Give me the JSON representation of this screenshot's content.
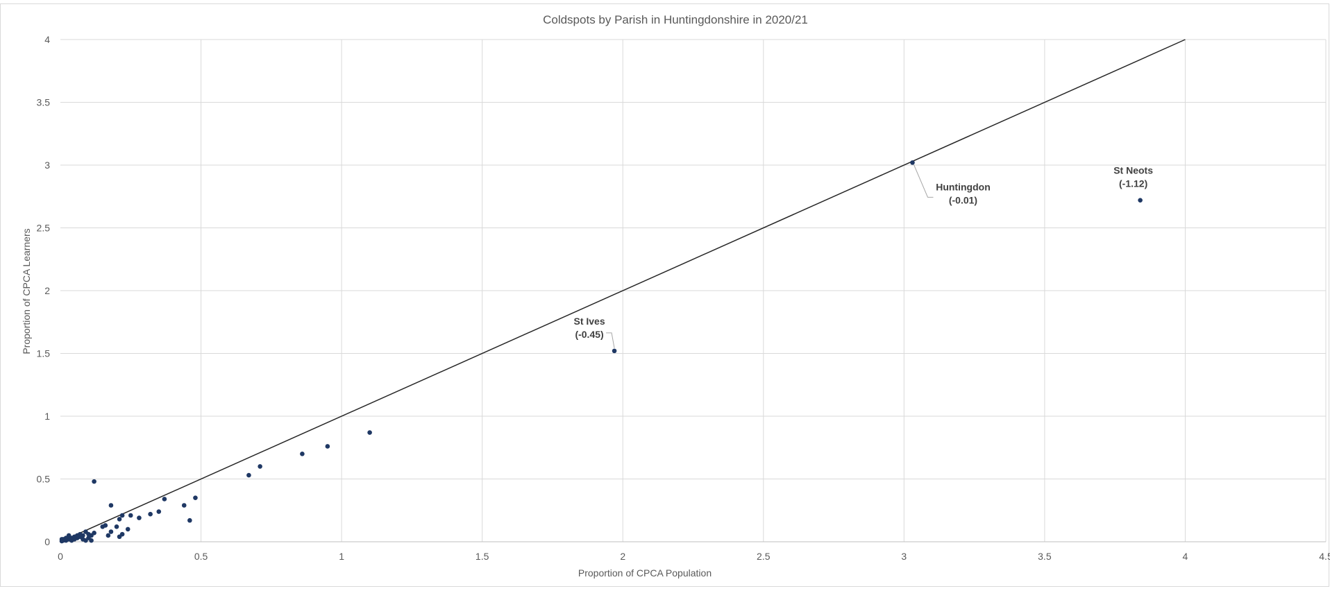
{
  "chart_data": {
    "type": "scatter",
    "title": "Coldspots by Parish in Huntingdonshire in 2020/21",
    "xlabel": "Proportion of CPCA Population",
    "ylabel": "Proportion of CPCA Learners",
    "xlim": [
      0,
      4.5
    ],
    "ylim": [
      0,
      4
    ],
    "x_ticks": [
      "0",
      "0.5",
      "1",
      "1.5",
      "2",
      "2.5",
      "3",
      "3.5",
      "4",
      "4.5"
    ],
    "y_ticks": [
      "0",
      "0.5",
      "1",
      "1.5",
      "2",
      "2.5",
      "3",
      "3.5",
      "4"
    ],
    "grid": true,
    "marker_color": "#1F3864",
    "reference_line": {
      "from": [
        0,
        0
      ],
      "to": [
        4,
        4
      ],
      "color": "#262626"
    },
    "points": [
      [
        1.1,
        0.87
      ],
      [
        0.95,
        0.76
      ],
      [
        0.86,
        0.7
      ],
      [
        0.71,
        0.6
      ],
      [
        0.67,
        0.53
      ],
      [
        0.48,
        0.35
      ],
      [
        0.46,
        0.17
      ],
      [
        0.44,
        0.29
      ],
      [
        0.37,
        0.34
      ],
      [
        0.35,
        0.24
      ],
      [
        0.32,
        0.22
      ],
      [
        0.28,
        0.19
      ],
      [
        0.25,
        0.21
      ],
      [
        0.24,
        0.1
      ],
      [
        0.22,
        0.21
      ],
      [
        0.22,
        0.06
      ],
      [
        0.21,
        0.18
      ],
      [
        0.21,
        0.04
      ],
      [
        0.2,
        0.12
      ],
      [
        0.18,
        0.29
      ],
      [
        0.18,
        0.08
      ],
      [
        0.17,
        0.05
      ],
      [
        0.16,
        0.13
      ],
      [
        0.15,
        0.12
      ],
      [
        0.12,
        0.48
      ],
      [
        0.12,
        0.07
      ],
      [
        0.11,
        0.01
      ],
      [
        0.11,
        0.05
      ],
      [
        0.1,
        0.06
      ],
      [
        0.1,
        0.03
      ],
      [
        0.09,
        0.08
      ],
      [
        0.09,
        0.01
      ],
      [
        0.08,
        0.05
      ],
      [
        0.08,
        0.02
      ],
      [
        0.07,
        0.04
      ],
      [
        0.07,
        0.06
      ],
      [
        0.06,
        0.03
      ],
      [
        0.06,
        0.05
      ],
      [
        0.05,
        0.02
      ],
      [
        0.05,
        0.04
      ],
      [
        0.04,
        0.01
      ],
      [
        0.04,
        0.03
      ],
      [
        0.03,
        0.05
      ],
      [
        0.03,
        0.02
      ],
      [
        0.02,
        0.01
      ],
      [
        0.02,
        0.03
      ],
      [
        0.01,
        0.02
      ],
      [
        0.01,
        0.01
      ],
      [
        0.005,
        0.005
      ],
      [
        0.005,
        0.02
      ]
    ],
    "annotations": [
      {
        "name": "St Ives",
        "value": "(-0.45)",
        "x": 1.97,
        "y": 1.52
      },
      {
        "name": "Huntingdon",
        "value": "(-0.01)",
        "x": 3.03,
        "y": 3.02
      },
      {
        "name": "St Neots",
        "value": "(-1.12)",
        "x": 3.84,
        "y": 2.72
      }
    ]
  }
}
